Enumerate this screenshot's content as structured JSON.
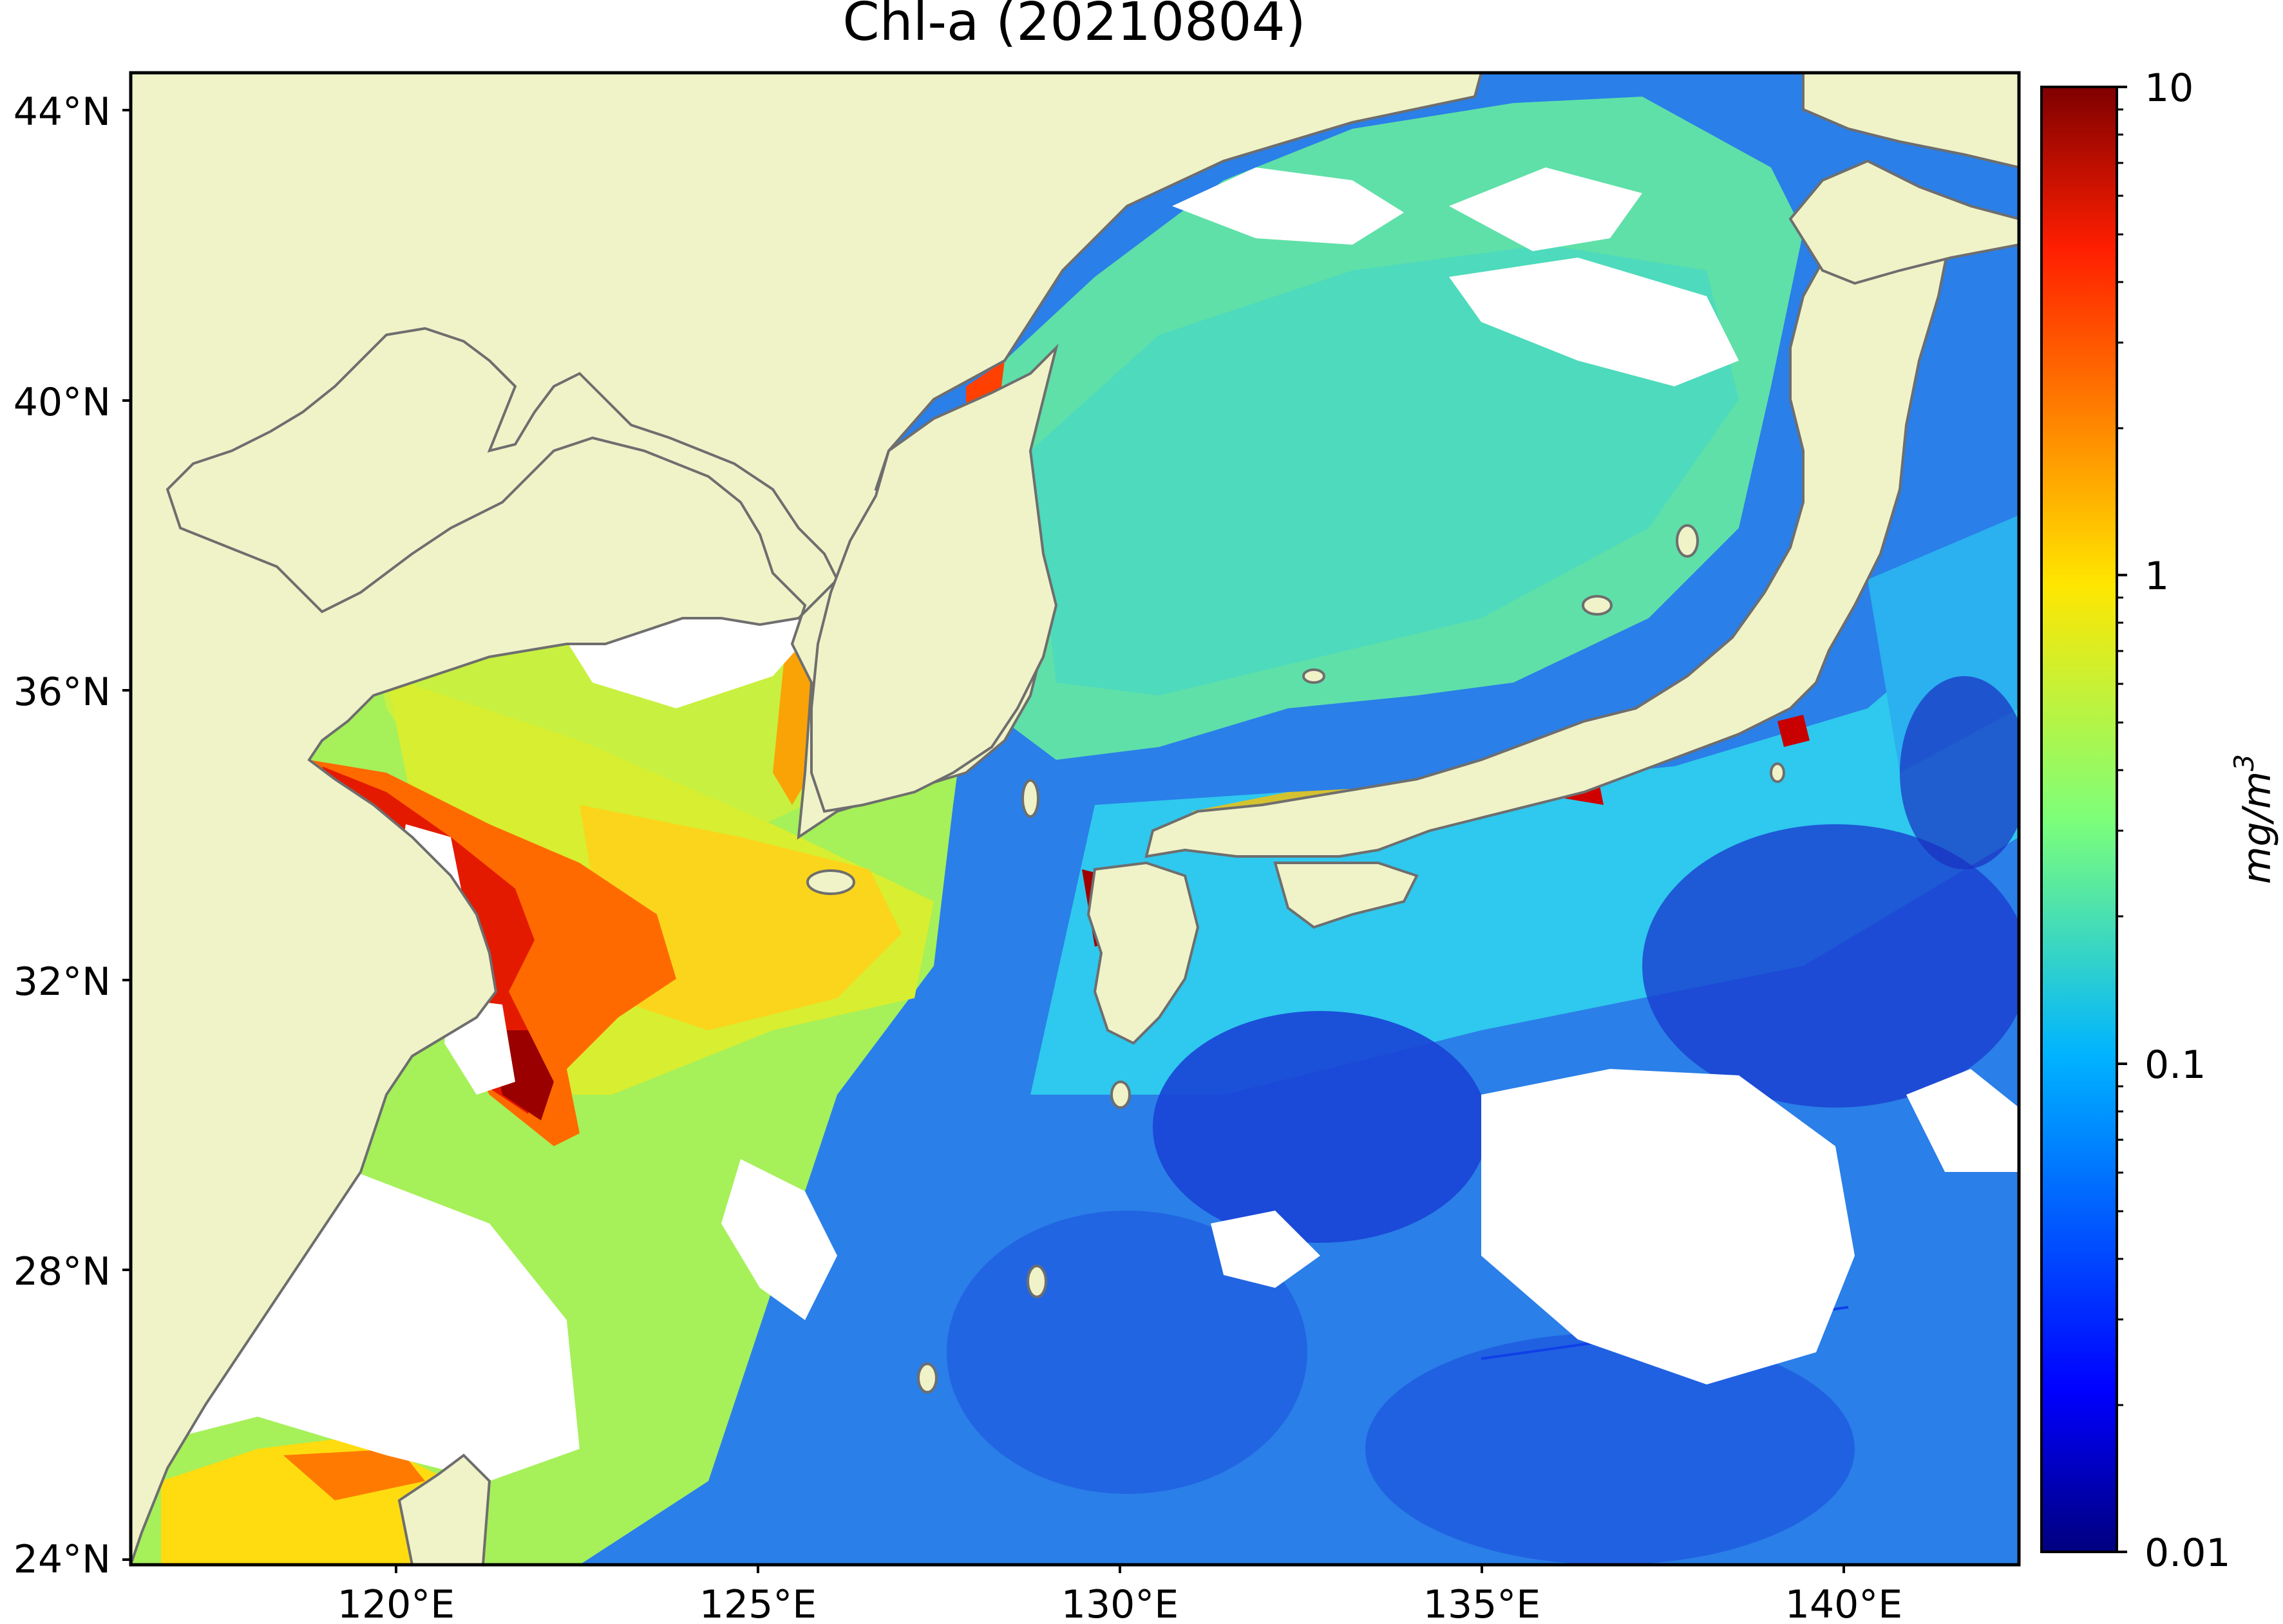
{
  "title": "Chl-a (20210804)",
  "map": {
    "lat_labels": [
      "44°N",
      "40°N",
      "36°N",
      "32°N",
      "28°N",
      "24°N"
    ],
    "lon_labels": [
      "120°E",
      "125°E",
      "130°E",
      "135°E",
      "140°E"
    ],
    "land_color": "#f0f3c8",
    "coastline_color": "#6e6e6e",
    "no_data_color": "#ffffff"
  },
  "colorbar": {
    "label": "mg/m",
    "label_superscript": "3",
    "ticks": [
      "10",
      "1",
      "0.1",
      "0.01"
    ],
    "colormap": "jet",
    "scale": "log"
  }
}
